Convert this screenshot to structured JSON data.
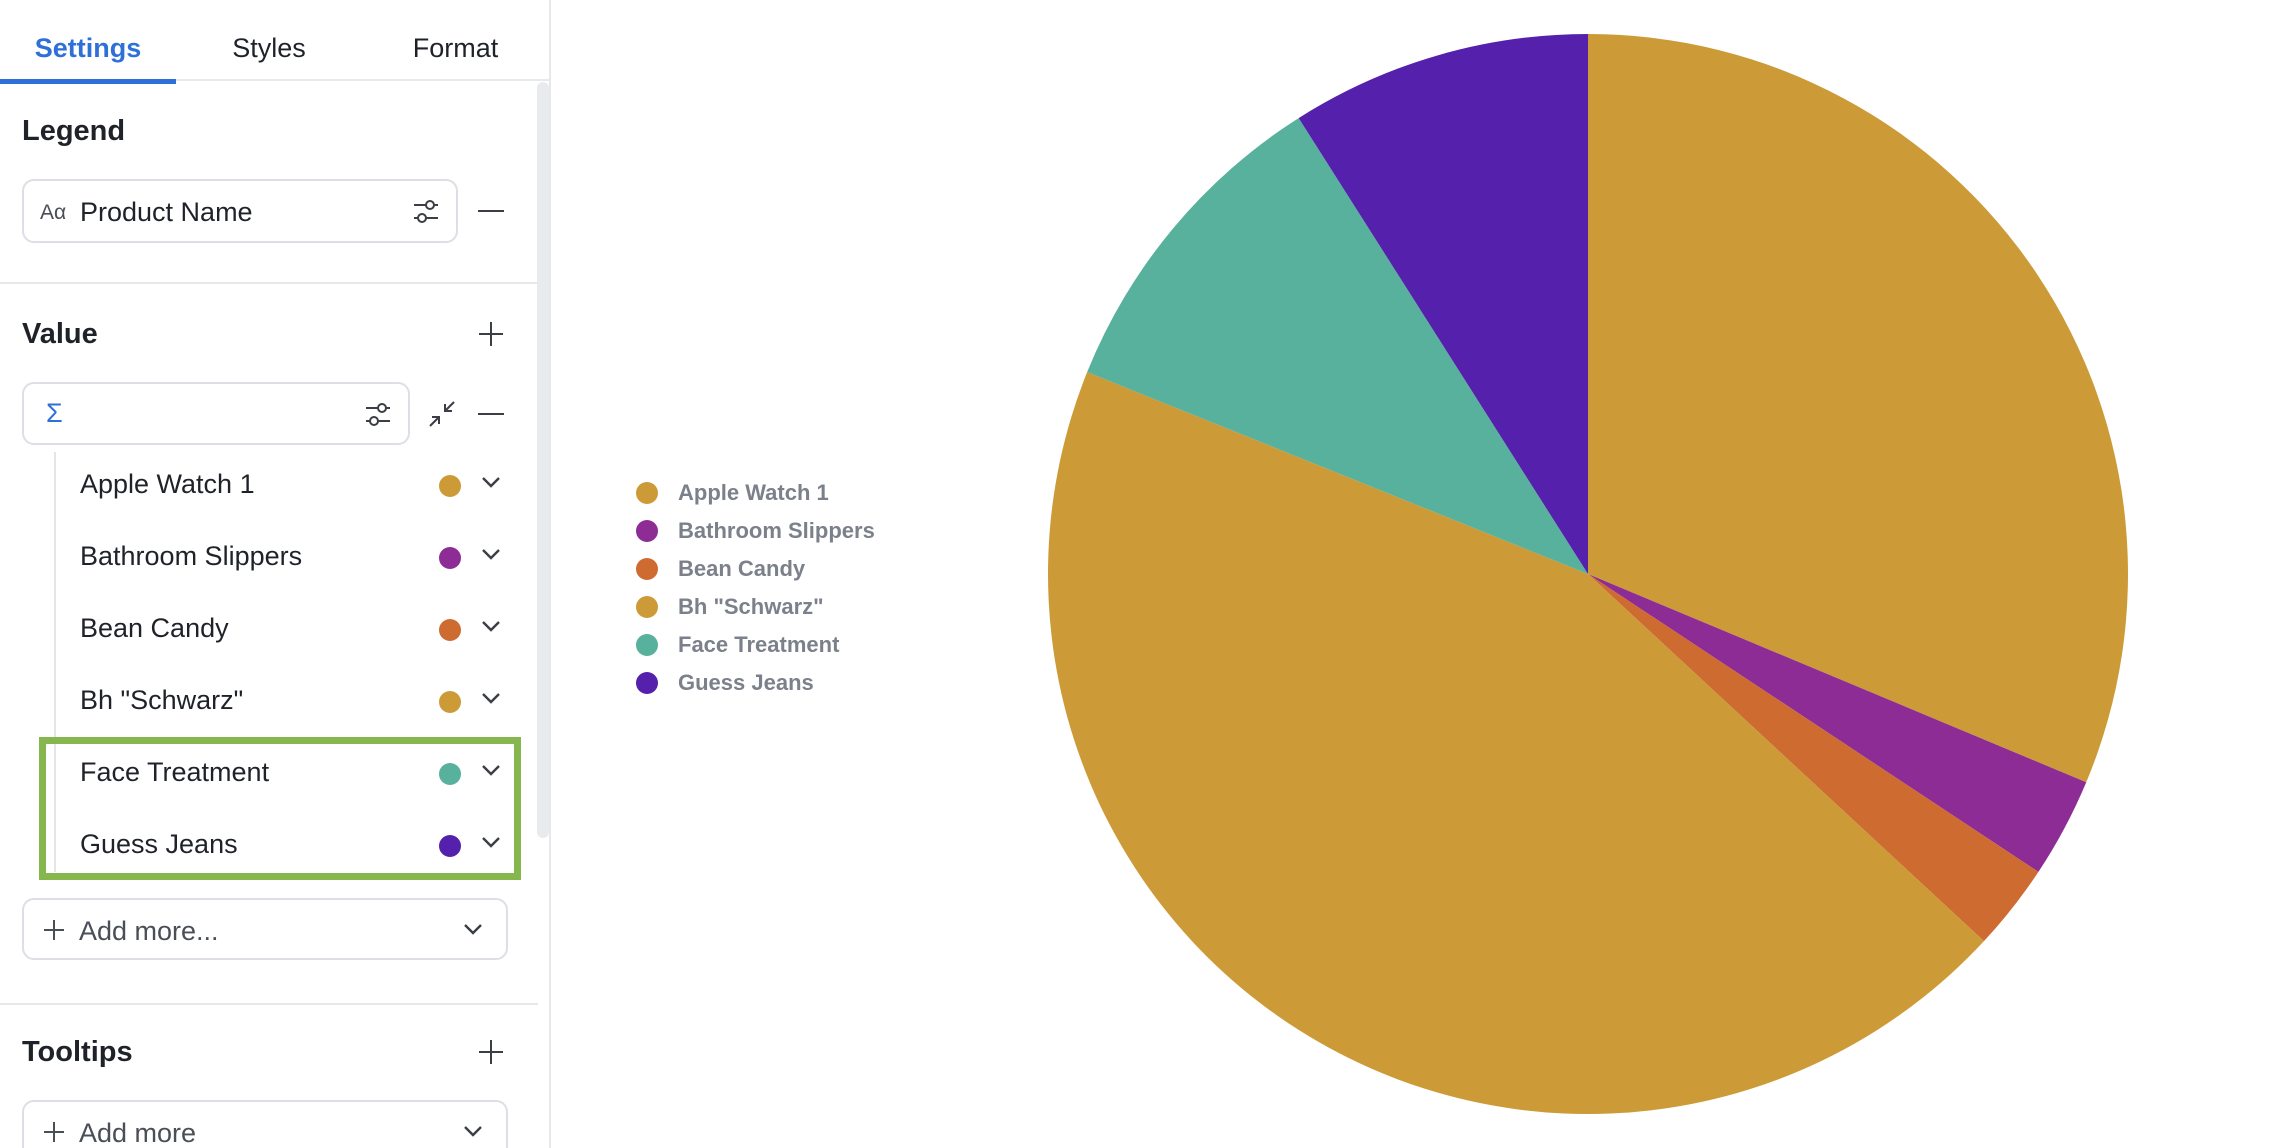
{
  "tabs": [
    {
      "label": "Settings",
      "active": true
    },
    {
      "label": "Styles",
      "active": false
    },
    {
      "label": "Format",
      "active": false
    }
  ],
  "legend_section": {
    "title": "Legend",
    "field_type_icon": "Aα",
    "field_label": "Product Name"
  },
  "value_section": {
    "title": "Value",
    "aggregation_icon": "Σ",
    "field_label": "",
    "series": [
      {
        "name": "Apple Watch 1",
        "color": "#cc9b38"
      },
      {
        "name": "Bathroom Slippers",
        "color": "#8e2c96"
      },
      {
        "name": "Bean Candy",
        "color": "#cd6b31"
      },
      {
        "name": "Bh \"Schwarz\"",
        "color": "#cc9b38"
      },
      {
        "name": "Face Treatment",
        "color": "#57b19c"
      },
      {
        "name": "Guess Jeans",
        "color": "#5520ab"
      }
    ],
    "add_more_label": "Add more..."
  },
  "tooltips_section": {
    "title": "Tooltips",
    "add_more_label": "Add more"
  },
  "colors": {
    "accent": "#2f6fd8",
    "highlight": "#85b74e"
  },
  "chart_data": {
    "type": "pie",
    "title": "",
    "legend_position": "left",
    "categories": [
      "Apple Watch 1",
      "Bathroom Slippers",
      "Bean Candy",
      "Bh \"Schwarz\"",
      "Face Treatment",
      "Guess Jeans"
    ],
    "slice_order": [
      "Apple Watch 1",
      "Bathroom Slippers",
      "Bean Candy",
      "Bh \"Schwarz\"",
      "Face Treatment",
      "Guess Jeans"
    ],
    "percentages": [
      31.3,
      3.0,
      2.6,
      44.2,
      9.9,
      9.0
    ],
    "colors": [
      "#cc9b38",
      "#8e2c96",
      "#cd6b31",
      "#cc9b38",
      "#57b19c",
      "#5520ab"
    ]
  }
}
